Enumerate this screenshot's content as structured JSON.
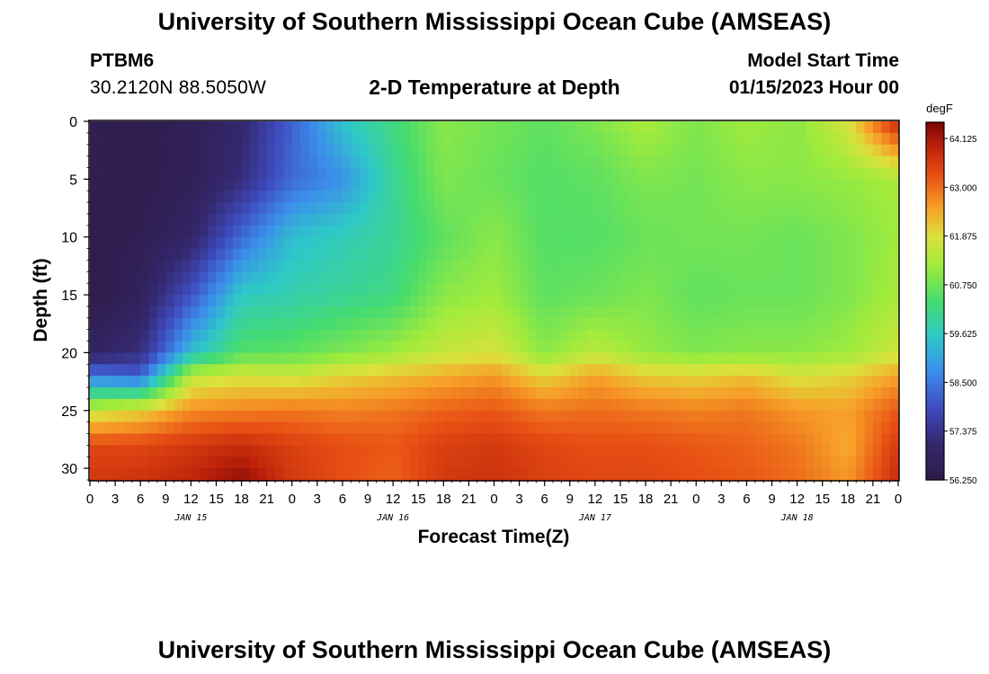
{
  "header": {
    "title": "University of Southern Mississippi Ocean Cube (AMSEAS)",
    "station_id": "PTBM6",
    "coordinates": "30.2120N  88.5050W",
    "plot_title": "2-D Temperature at Depth",
    "model_start_label": "Model Start Time",
    "model_start_value": "01/15/2023 Hour 00"
  },
  "footer": {
    "title": "University of Southern Mississippi Ocean Cube (AMSEAS)"
  },
  "chart_data": {
    "type": "heatmap",
    "title": "2-D Temperature at Depth",
    "xlabel": "Forecast Time(Z)",
    "ylabel": "Depth (ft)",
    "x_tick_labels": [
      "0",
      "3",
      "6",
      "9",
      "12",
      "15",
      "18",
      "21",
      "0",
      "3",
      "6",
      "9",
      "12",
      "15",
      "18",
      "21",
      "0",
      "3",
      "6",
      "9",
      "12",
      "15",
      "18",
      "21",
      "0",
      "3",
      "6",
      "9",
      "12",
      "15",
      "18",
      "21",
      "0"
    ],
    "day_labels": [
      {
        "label": "JAN 15",
        "hour": 12
      },
      {
        "label": "JAN 16",
        "hour": 36
      },
      {
        "label": "JAN 17",
        "hour": 60
      },
      {
        "label": "JAN 18",
        "hour": 84
      }
    ],
    "xlim_hours": [
      0,
      96
    ],
    "ylim_ft": [
      0,
      31
    ],
    "y_ticks": [
      "0",
      "5",
      "10",
      "15",
      "20",
      "25",
      "30"
    ],
    "colorbar": {
      "units": "degF",
      "ticks": [
        "64.125",
        "63.000",
        "61.875",
        "60.750",
        "59.625",
        "58.500",
        "57.375",
        "56.250"
      ],
      "range": [
        56.25,
        64.5
      ]
    },
    "grid_hours": [
      0,
      6,
      12,
      18,
      24,
      30,
      36,
      42,
      48,
      54,
      60,
      66,
      72,
      78,
      84,
      90,
      96
    ],
    "grid_depths_ft": [
      0,
      5,
      10,
      15,
      20,
      22,
      25,
      28,
      31
    ],
    "temperature_degF": [
      [
        56.5,
        56.4,
        56.6,
        57.0,
        58.2,
        59.5,
        60.2,
        61.0,
        60.8,
        60.6,
        60.9,
        61.3,
        60.9,
        61.2,
        61.0,
        61.8,
        63.9
      ],
      [
        56.5,
        56.4,
        56.6,
        57.2,
        58.3,
        58.8,
        60.0,
        60.9,
        60.7,
        60.5,
        60.6,
        60.9,
        60.8,
        61.0,
        61.0,
        61.1,
        61.3
      ],
      [
        56.4,
        56.5,
        56.9,
        58.3,
        59.4,
        59.7,
        60.0,
        60.6,
        61.0,
        60.5,
        60.5,
        60.7,
        60.8,
        60.8,
        60.7,
        60.9,
        61.2
      ],
      [
        56.3,
        56.7,
        58.0,
        59.6,
        59.8,
        60.0,
        60.2,
        61.0,
        61.2,
        60.6,
        60.7,
        60.9,
        60.6,
        60.7,
        60.7,
        60.9,
        61.3
      ],
      [
        56.8,
        57.2,
        59.4,
        60.5,
        60.6,
        60.9,
        61.2,
        61.6,
        61.8,
        61.0,
        61.5,
        61.1,
        60.9,
        61.0,
        61.0,
        61.2,
        61.7
      ],
      [
        58.5,
        58.2,
        61.5,
        61.8,
        61.7,
        62.0,
        62.2,
        62.4,
        62.6,
        62.0,
        62.5,
        62.1,
        62.0,
        62.2,
        61.8,
        62.0,
        62.5
      ],
      [
        61.6,
        62.0,
        62.7,
        62.8,
        62.9,
        62.8,
        62.9,
        63.1,
        63.2,
        62.9,
        63.0,
        62.9,
        62.8,
        62.9,
        62.6,
        62.5,
        63.2
      ],
      [
        63.4,
        63.4,
        63.6,
        63.8,
        63.5,
        63.3,
        63.2,
        63.5,
        63.6,
        63.4,
        63.3,
        63.3,
        63.2,
        63.1,
        62.9,
        62.4,
        63.6
      ],
      [
        63.6,
        63.7,
        63.9,
        64.3,
        63.6,
        63.3,
        63.1,
        63.6,
        63.7,
        63.5,
        63.4,
        63.4,
        63.3,
        63.2,
        63.0,
        62.6,
        63.8
      ]
    ]
  }
}
